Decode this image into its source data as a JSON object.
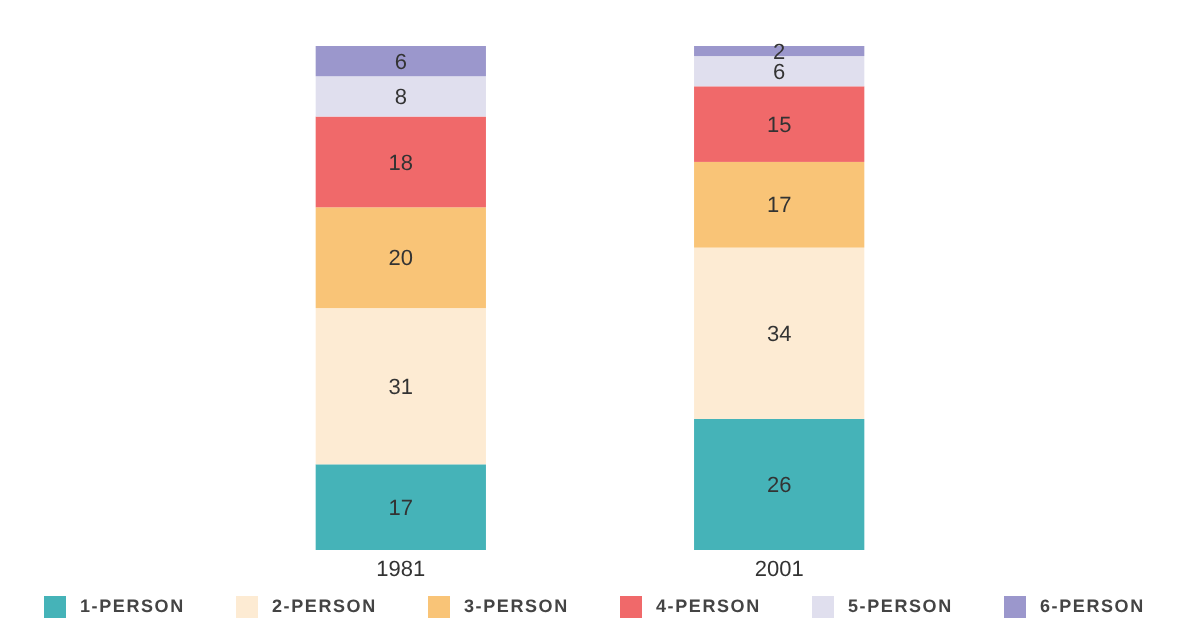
{
  "chart_data": {
    "type": "bar",
    "stacked": true,
    "categories": [
      "1981",
      "2001"
    ],
    "ylim": [
      0,
      100
    ],
    "data_labels": true,
    "legend": "bottom",
    "series": [
      {
        "name": "1-PERSON",
        "color": "#45b3b8",
        "values": [
          17,
          26
        ]
      },
      {
        "name": "2-PERSON",
        "color": "#fdebd3",
        "values": [
          31,
          34
        ]
      },
      {
        "name": "3-PERSON",
        "color": "#f9c477",
        "values": [
          20,
          17
        ]
      },
      {
        "name": "4-PERSON",
        "color": "#f0696a",
        "values": [
          18,
          15
        ]
      },
      {
        "name": "5-PERSON",
        "color": "#e0dfee",
        "values": [
          8,
          6
        ]
      },
      {
        "name": "6-PERSON",
        "color": "#9b97cc",
        "values": [
          6,
          2
        ]
      }
    ]
  }
}
